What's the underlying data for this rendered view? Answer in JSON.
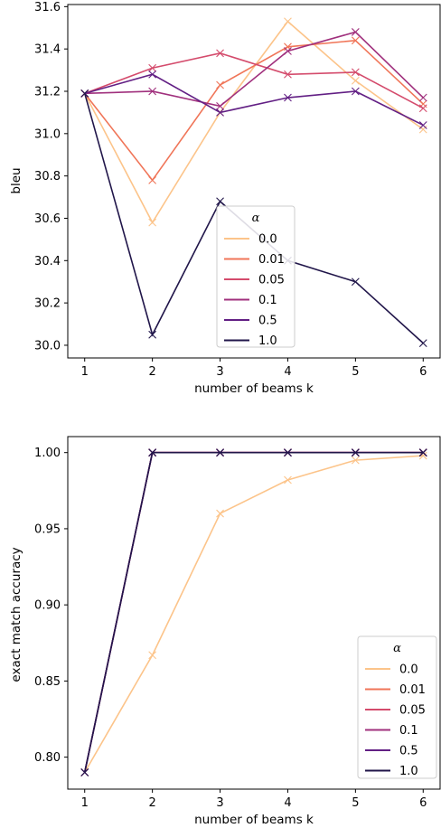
{
  "chart_data": [
    {
      "type": "line",
      "xlabel": "number of beams k",
      "ylabel": "bleu",
      "x": [
        1,
        2,
        3,
        4,
        5,
        6
      ],
      "xlim": [
        0.75,
        6.25
      ],
      "ylim": [
        29.94,
        31.61
      ],
      "xticks": [
        "1",
        "2",
        "3",
        "4",
        "5",
        "6"
      ],
      "yticks": [
        "30.0",
        "30.2",
        "30.4",
        "30.6",
        "30.8",
        "31.0",
        "31.2",
        "31.4",
        "31.6"
      ],
      "legend": {
        "title": "α",
        "placement": "lower-center"
      },
      "series": [
        {
          "name": "0.0",
          "color": "#fcc48a",
          "values": [
            31.19,
            30.58,
            31.1,
            31.53,
            31.25,
            31.02
          ]
        },
        {
          "name": "0.01",
          "color": "#f07558",
          "values": [
            31.19,
            30.78,
            31.23,
            31.41,
            31.44,
            31.14
          ]
        },
        {
          "name": "0.05",
          "color": "#d44b6c",
          "values": [
            31.19,
            31.31,
            31.38,
            31.28,
            31.29,
            31.12
          ]
        },
        {
          "name": "0.1",
          "color": "#a0307d",
          "values": [
            31.19,
            31.2,
            31.13,
            31.39,
            31.48,
            31.17
          ]
        },
        {
          "name": "0.5",
          "color": "#621f84",
          "values": [
            31.19,
            31.28,
            31.1,
            31.17,
            31.2,
            31.04
          ]
        },
        {
          "name": "1.0",
          "color": "#21164a",
          "values": [
            31.19,
            30.05,
            30.68,
            30.4,
            30.3,
            30.01
          ]
        }
      ]
    },
    {
      "type": "line",
      "xlabel": "number of beams k",
      "ylabel": "exact match accuracy",
      "x": [
        1,
        2,
        3,
        4,
        5,
        6
      ],
      "xlim": [
        0.75,
        6.25
      ],
      "ylim": [
        0.779,
        1.0105
      ],
      "xticks": [
        "1",
        "2",
        "3",
        "4",
        "5",
        "6"
      ],
      "yticks": [
        "0.80",
        "0.85",
        "0.90",
        "0.95",
        "1.00"
      ],
      "legend": {
        "title": "α",
        "placement": "lower-right"
      },
      "series": [
        {
          "name": "0.0",
          "color": "#fcc48a",
          "values": [
            0.79,
            0.867,
            0.96,
            0.982,
            0.995,
            0.998
          ]
        },
        {
          "name": "0.01",
          "color": "#f07558",
          "values": [
            0.79,
            1.0,
            1.0,
            1.0,
            1.0,
            1.0
          ]
        },
        {
          "name": "0.05",
          "color": "#d44b6c",
          "values": [
            0.79,
            1.0,
            1.0,
            1.0,
            1.0,
            1.0
          ]
        },
        {
          "name": "0.1",
          "color": "#a0307d",
          "values": [
            0.79,
            1.0,
            1.0,
            1.0,
            1.0,
            1.0
          ]
        },
        {
          "name": "0.5",
          "color": "#621f84",
          "values": [
            0.79,
            1.0,
            1.0,
            1.0,
            1.0,
            1.0
          ]
        },
        {
          "name": "1.0",
          "color": "#21164a",
          "values": [
            0.79,
            1.0,
            1.0,
            1.0,
            1.0,
            1.0
          ]
        }
      ]
    }
  ]
}
